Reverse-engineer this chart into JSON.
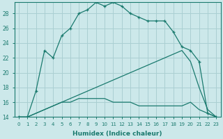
{
  "xlabel": "Humidex (Indice chaleur)",
  "background_color": "#cce8ea",
  "grid_color": "#aacfd2",
  "line_color": "#1a7a6e",
  "xlim": [
    -0.5,
    23.5
  ],
  "ylim": [
    14,
    29.5
  ],
  "xticks": [
    0,
    1,
    2,
    3,
    4,
    5,
    6,
    7,
    8,
    9,
    10,
    11,
    12,
    13,
    14,
    15,
    16,
    17,
    18,
    19,
    20,
    21,
    22,
    23
  ],
  "yticks": [
    14,
    16,
    18,
    20,
    22,
    24,
    26,
    28
  ],
  "curve1_x": [
    0,
    1,
    2,
    3,
    4,
    5,
    6,
    7,
    8,
    9,
    10,
    11,
    12,
    13,
    14,
    15,
    16,
    17,
    18,
    19,
    20,
    21,
    22,
    23
  ],
  "curve1_y": [
    14,
    14,
    17.5,
    23,
    22,
    25,
    26,
    28,
    28.5,
    29.5,
    29,
    29.5,
    29,
    28,
    27.5,
    27,
    27,
    27,
    25.5,
    23.5,
    23,
    21.5,
    14.5,
    14
  ],
  "curve2_x": [
    0,
    1,
    2,
    3,
    4,
    5,
    6,
    7,
    8,
    9,
    10,
    11,
    12,
    13,
    14,
    15,
    16,
    17,
    18,
    19,
    20,
    21,
    22,
    23
  ],
  "curve2_y": [
    14,
    14,
    14.5,
    15,
    15.5,
    16,
    16.5,
    17,
    17.5,
    18,
    18.5,
    19,
    19.5,
    20,
    20.5,
    21,
    21.5,
    22,
    22.5,
    23,
    21.5,
    18,
    15,
    14
  ],
  "curve3_x": [
    0,
    1,
    2,
    3,
    4,
    5,
    6,
    7,
    8,
    9,
    10,
    11,
    12,
    13,
    14,
    15,
    16,
    17,
    18,
    19,
    20,
    21,
    22,
    23
  ],
  "curve3_y": [
    14,
    14,
    14.5,
    15,
    15.5,
    16,
    16,
    16.5,
    16.5,
    16.5,
    16.5,
    16,
    16,
    16,
    15.5,
    15.5,
    15.5,
    15.5,
    15.5,
    15.5,
    16,
    15,
    14.5,
    14
  ]
}
